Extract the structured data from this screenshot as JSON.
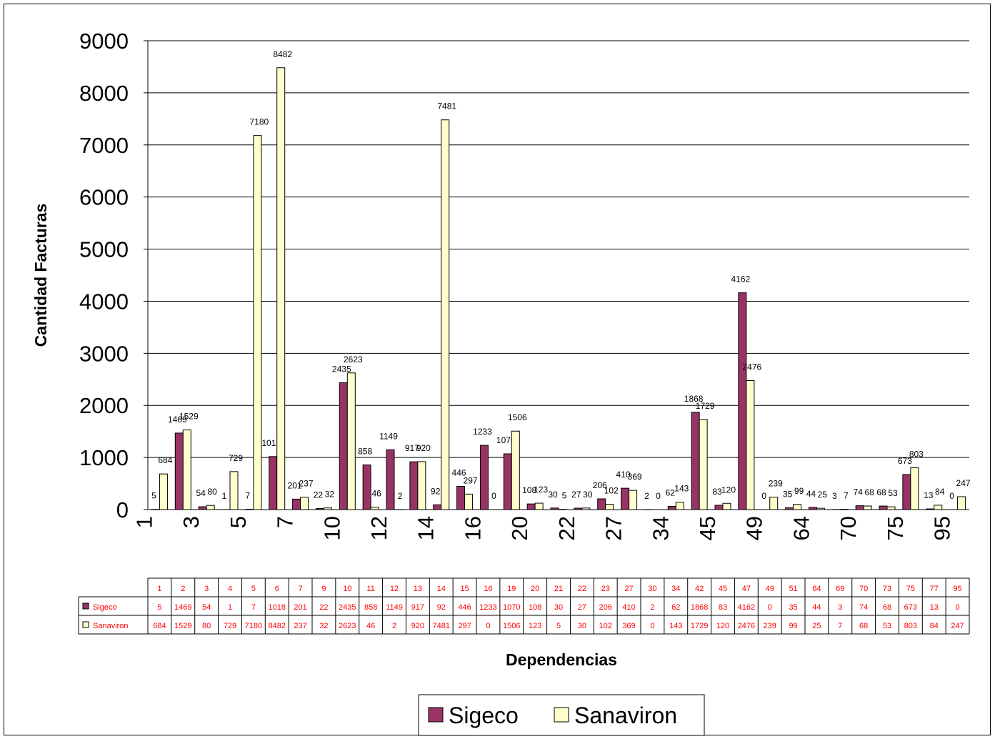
{
  "chart_data": {
    "type": "bar",
    "title": "",
    "ylabel": "Cantidad Facturas",
    "xlabel": "Dependencias",
    "ylim": [
      0,
      9000
    ],
    "yticks": [
      0,
      1000,
      2000,
      3000,
      4000,
      5000,
      6000,
      7000,
      8000,
      9000
    ],
    "grid": true,
    "legend_position": "bottom-center",
    "data_table": true,
    "categories": [
      "1",
      "2",
      "3",
      "4",
      "5",
      "6",
      "7",
      "9",
      "10",
      "11",
      "12",
      "13",
      "14",
      "15",
      "16",
      "19",
      "20",
      "21",
      "22",
      "23",
      "27",
      "30",
      "34",
      "42",
      "45",
      "47",
      "49",
      "51",
      "64",
      "69",
      "70",
      "73",
      "75",
      "77",
      "95"
    ],
    "axis_tick_labels": [
      "1",
      "",
      "3",
      "",
      "5",
      "",
      "7",
      "",
      "10",
      "",
      "12",
      "",
      "14",
      "",
      "16",
      "",
      "20",
      "",
      "22",
      "",
      "27",
      "",
      "34",
      "",
      "45",
      "",
      "49",
      "",
      "64",
      "",
      "70",
      "",
      "75",
      "",
      "95"
    ],
    "series": [
      {
        "name": "Sigeco",
        "color": "#993366",
        "values": [
          5,
          1469,
          54,
          1,
          7,
          1018,
          201,
          22,
          2435,
          858,
          1149,
          917,
          92,
          446,
          1233,
          1070,
          108,
          30,
          27,
          206,
          410,
          2,
          62,
          1868,
          83,
          4162,
          0,
          35,
          44,
          3,
          74,
          68,
          673,
          13,
          0
        ]
      },
      {
        "name": "Sanaviron",
        "color": "#FFFFCC",
        "values": [
          684,
          1529,
          80,
          729,
          7180,
          8482,
          237,
          32,
          2623,
          46,
          2,
          920,
          7481,
          297,
          0,
          1506,
          123,
          5,
          30,
          102,
          369,
          0,
          143,
          1729,
          120,
          2476,
          239,
          99,
          25,
          7,
          68,
          53,
          803,
          84,
          247
        ]
      }
    ]
  }
}
